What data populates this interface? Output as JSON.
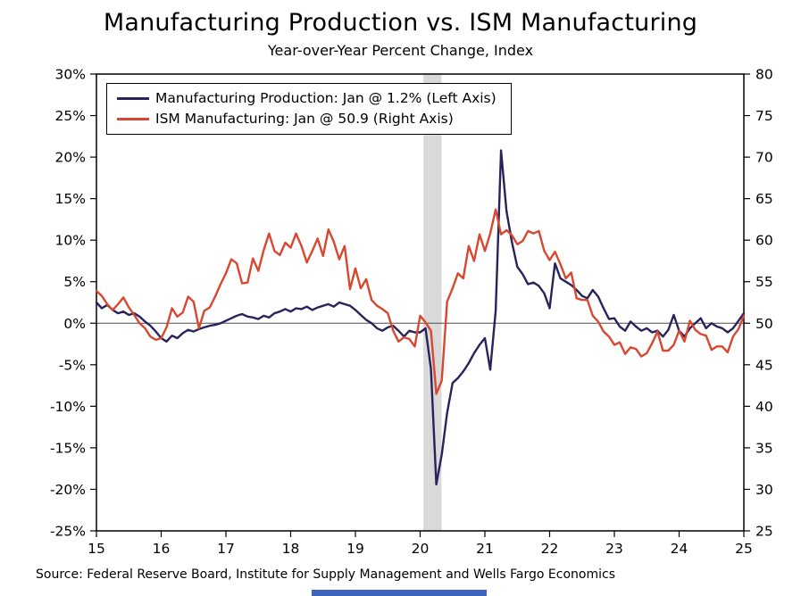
{
  "title": "Manufacturing Production vs. ISM Manufacturing",
  "subtitle": "Year-over-Year Percent Change, Index",
  "source": "Source: Federal Reserve Board, Institute for Supply Management and Wells Fargo Economics",
  "chart_data": {
    "type": "line",
    "title": "Manufacturing Production vs. ISM Manufacturing",
    "subtitle": "Year-over-Year Percent Change, Index",
    "x_unit": "year (monthly frequency)",
    "x_range": [
      2015,
      2025
    ],
    "x_ticks": [
      "15",
      "16",
      "17",
      "18",
      "19",
      "20",
      "21",
      "22",
      "23",
      "24",
      "25"
    ],
    "left_axis": {
      "min": -25,
      "max": 30,
      "step": 5,
      "format": "percent"
    },
    "right_axis": {
      "min": 25,
      "max": 80,
      "step": 5,
      "format": "index"
    },
    "grid": "off",
    "legend_position": "top-left-inside",
    "recession_band": {
      "x0": 2020.05,
      "x1": 2020.33,
      "color": "#D9D9D9"
    },
    "zero_line_left_value": 0,
    "series": [
      {
        "name": "Manufacturing Production: Jan @ 1.2% (Left Axis)",
        "axis": "left",
        "color": "#29235C",
        "values": [
          2.5,
          1.8,
          2.2,
          1.6,
          1.2,
          1.4,
          1.0,
          1.2,
          0.8,
          0.2,
          -0.3,
          -1.0,
          -1.8,
          -2.2,
          -1.5,
          -1.8,
          -1.2,
          -0.8,
          -1.0,
          -0.7,
          -0.5,
          -0.3,
          -0.2,
          0.0,
          0.3,
          0.6,
          0.9,
          1.1,
          0.8,
          0.7,
          0.5,
          0.9,
          0.7,
          1.2,
          1.4,
          1.7,
          1.4,
          1.8,
          1.7,
          2.0,
          1.6,
          1.9,
          2.1,
          2.3,
          2.0,
          2.5,
          2.3,
          2.1,
          1.6,
          1.0,
          0.4,
          0.0,
          -0.6,
          -0.9,
          -0.5,
          -0.3,
          -0.9,
          -1.6,
          -0.9,
          -1.1,
          -1.1,
          -0.6,
          -5.5,
          -19.4,
          -15.8,
          -10.8,
          -7.2,
          -6.6,
          -5.8,
          -4.8,
          -3.6,
          -2.6,
          -1.8,
          -5.6,
          1.5,
          20.8,
          13.5,
          9.8,
          6.8,
          5.9,
          4.7,
          4.9,
          4.5,
          3.6,
          1.8,
          7.2,
          5.4,
          5.0,
          4.6,
          4.0,
          3.3,
          3.0,
          4.0,
          3.2,
          1.8,
          0.5,
          0.6,
          -0.4,
          -0.9,
          0.2,
          -0.4,
          -0.9,
          -0.6,
          -1.1,
          -0.9,
          -1.6,
          -0.8,
          1.0,
          -0.9,
          -1.6,
          -0.6,
          0.0,
          0.6,
          -0.6,
          0.0,
          -0.4,
          -0.6,
          -1.1,
          -0.6,
          0.3,
          1.2
        ]
      },
      {
        "name": "ISM Manufacturing: Jan @ 50.9 (Right Axis)",
        "axis": "right",
        "color": "#D8472F",
        "values": [
          53.9,
          53.3,
          52.3,
          51.6,
          52.3,
          53.1,
          51.9,
          51.0,
          50.0,
          49.4,
          48.4,
          48.0,
          48.2,
          49.5,
          51.8,
          50.8,
          51.3,
          53.2,
          52.6,
          49.4,
          51.5,
          51.9,
          53.2,
          54.7,
          56.0,
          57.7,
          57.2,
          54.8,
          54.9,
          57.8,
          56.3,
          58.8,
          60.8,
          58.7,
          58.2,
          59.7,
          59.1,
          60.8,
          59.3,
          57.3,
          58.7,
          60.2,
          58.1,
          61.3,
          59.8,
          57.7,
          59.3,
          54.1,
          56.6,
          54.2,
          55.3,
          52.8,
          52.1,
          51.7,
          51.2,
          49.1,
          47.8,
          48.3,
          48.1,
          47.2,
          50.9,
          50.1,
          49.1,
          41.5,
          43.1,
          52.6,
          54.2,
          56.0,
          55.4,
          59.3,
          57.5,
          60.7,
          58.7,
          60.8,
          63.7,
          60.7,
          61.2,
          60.6,
          59.5,
          59.9,
          61.1,
          60.8,
          61.1,
          58.7,
          57.6,
          58.6,
          57.1,
          55.4,
          56.1,
          53.0,
          52.8,
          52.8,
          50.9,
          50.2,
          49.0,
          48.4,
          47.4,
          47.7,
          46.3,
          47.1,
          46.9,
          46.0,
          46.4,
          47.6,
          49.0,
          46.7,
          46.7,
          47.4,
          49.1,
          47.8,
          50.3,
          49.2,
          48.7,
          48.5,
          46.8,
          47.2,
          47.2,
          46.5,
          48.4,
          49.3,
          50.9
        ]
      }
    ]
  }
}
